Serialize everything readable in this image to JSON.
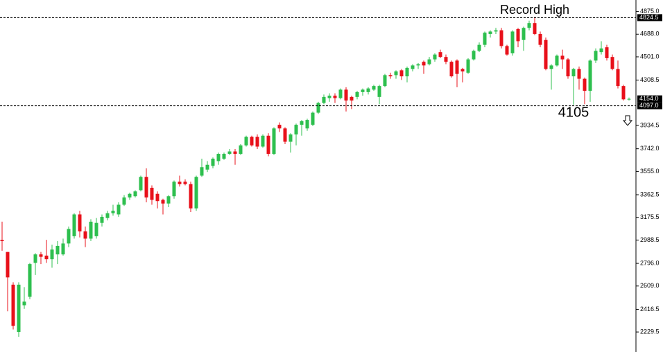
{
  "chart_data": {
    "type": "candlestick",
    "up_color": "#2dbf4e",
    "down_color": "#e8101a",
    "ylim": [
      2110,
      4970
    ],
    "yticks": [
      2229.5,
      2416.5,
      {
        "value": 2609.0,
        "label": "2609.0"
      },
      {
        "value": 2796.0,
        "label": "2796.0"
      },
      2988.5,
      3175.5,
      3362.5,
      {
        "value": 3555.0,
        "label": "3555.0"
      },
      {
        "value": 3742.0,
        "label": "3742.0"
      },
      3934.5,
      4308.5,
      {
        "value": 4501.0,
        "label": "4501.0"
      },
      {
        "value": 4688.0,
        "label": "4688.0"
      },
      {
        "value": 4875.0,
        "label": "4875.0"
      }
    ],
    "levels": [
      {
        "value": 4824.5,
        "label": "4824.5",
        "dashed": true
      },
      {
        "value": 4154.0,
        "label": "4154.0",
        "dashed": false
      },
      {
        "value": 4097.0,
        "label": "4097.0",
        "dashed": true
      }
    ],
    "annotations": [
      {
        "text": "Record High",
        "value": 4824.5,
        "index": 96
      },
      {
        "text": "4105",
        "value": 4105,
        "index": 103
      }
    ],
    "open": [
      2990,
      2890,
      2620,
      2230,
      2450,
      2520,
      2800,
      2870,
      2860,
      2830,
      2870,
      2870,
      2960,
      3020,
      3200,
      3060,
      3000,
      3020,
      3130,
      3170,
      3210,
      3200,
      3280,
      3340,
      3350,
      3400,
      3510,
      3420,
      3370,
      3320,
      3290,
      3350,
      3470,
      3470,
      3450,
      3250,
      3520,
      3570,
      3600,
      3640,
      3660,
      3700,
      3720,
      3700,
      3770,
      3840,
      3840,
      3760,
      3850,
      3700,
      3940,
      3910,
      3800,
      3860,
      3940,
      3910,
      3940,
      4040,
      4120,
      4160,
      4180,
      4160,
      4230,
      4170,
      4170,
      4210,
      4210,
      4230,
      4170,
      4260,
      4350,
      4350,
      4390,
      4340,
      4400,
      4430,
      4460,
      4440,
      4480,
      4540,
      4500,
      4460,
      4470,
      4400,
      4370,
      4480,
      4550,
      4600,
      4690,
      4710,
      4720,
      4590,
      4530,
      4730,
      4640,
      4740,
      4780,
      4690,
      4640,
      4400,
      4430,
      4510,
      4480,
      4340,
      4400,
      4320,
      4220,
      4470,
      4540,
      4580,
      4500,
      4400,
      4260,
      4150
    ],
    "high": [
      3140,
      2890,
      2640,
      2640,
      2600,
      2800,
      2880,
      2890,
      2990,
      2950,
      2980,
      3000,
      3100,
      3210,
      3230,
      3100,
      3160,
      3170,
      3200,
      3230,
      3280,
      3300,
      3360,
      3380,
      3400,
      3520,
      3580,
      3440,
      3390,
      3330,
      3360,
      3480,
      3520,
      3490,
      3470,
      3520,
      3660,
      3640,
      3670,
      3710,
      3710,
      3740,
      3740,
      3780,
      3850,
      3850,
      3860,
      3860,
      3870,
      3920,
      3960,
      3920,
      3870,
      3950,
      3980,
      3990,
      4050,
      4130,
      4190,
      4200,
      4200,
      4240,
      4250,
      4180,
      4220,
      4240,
      4250,
      4270,
      4270,
      4360,
      4370,
      4390,
      4400,
      4420,
      4440,
      4450,
      4470,
      4500,
      4530,
      4560,
      4520,
      4470,
      4480,
      4410,
      4490,
      4560,
      4620,
      4710,
      4720,
      4740,
      4740,
      4600,
      4720,
      4740,
      4750,
      4800,
      4830,
      4710,
      4660,
      4440,
      4520,
      4560,
      4490,
      4410,
      4420,
      4330,
      4480,
      4570,
      4630,
      4600,
      4520,
      4470,
      4270,
      4165
    ],
    "low": [
      2900,
      2400,
      2250,
      2190,
      2420,
      2500,
      2700,
      2790,
      2800,
      2760,
      2790,
      2860,
      2930,
      3000,
      3010,
      2930,
      2980,
      3000,
      3100,
      3150,
      3190,
      3180,
      3270,
      3320,
      3340,
      3390,
      3300,
      3280,
      3250,
      3200,
      3260,
      3330,
      3430,
      3440,
      3220,
      3230,
      3510,
      3550,
      3580,
      3610,
      3650,
      3690,
      3610,
      3690,
      3760,
      3760,
      3740,
      3750,
      3680,
      3690,
      3880,
      3780,
      3710,
      3770,
      3850,
      3890,
      3930,
      4030,
      4110,
      4130,
      4120,
      4150,
      4050,
      4070,
      4150,
      4180,
      4190,
      4220,
      4110,
      4250,
      4320,
      4320,
      4310,
      4290,
      4380,
      4400,
      4360,
      4430,
      4460,
      4490,
      4440,
      4330,
      4250,
      4290,
      4360,
      4470,
      4540,
      4580,
      4660,
      4690,
      4570,
      4510,
      4510,
      4580,
      4550,
      4720,
      4680,
      4580,
      4390,
      4230,
      4420,
      4400,
      4320,
      4105,
      4230,
      4110,
      4130,
      4450,
      4520,
      4470,
      4390,
      4240,
      4140,
      4140
    ],
    "close": [
      2980,
      2680,
      2280,
      2620,
      2480,
      2790,
      2870,
      2850,
      2830,
      2910,
      2940,
      2960,
      3080,
      3200,
      3060,
      3000,
      3140,
      3130,
      3180,
      3210,
      3230,
      3280,
      3340,
      3370,
      3390,
      3510,
      3340,
      3320,
      3310,
      3290,
      3350,
      3470,
      3450,
      3450,
      3250,
      3510,
      3590,
      3610,
      3660,
      3700,
      3700,
      3720,
      3700,
      3770,
      3840,
      3770,
      3760,
      3850,
      3700,
      3910,
      3910,
      3800,
      3860,
      3940,
      3970,
      3980,
      4040,
      4120,
      4170,
      4180,
      4160,
      4230,
      4140,
      4140,
      4210,
      4230,
      4240,
      4260,
      4260,
      4350,
      4340,
      4380,
      4340,
      4410,
      4430,
      4440,
      4430,
      4480,
      4520,
      4500,
      4460,
      4340,
      4360,
      4380,
      4480,
      4550,
      4600,
      4700,
      4710,
      4720,
      4590,
      4520,
      4710,
      4630,
      4740,
      4780,
      4690,
      4600,
      4400,
      4430,
      4510,
      4480,
      4340,
      4400,
      4320,
      4220,
      4470,
      4550,
      4570,
      4490,
      4400,
      4260,
      4150,
      4154
    ]
  }
}
